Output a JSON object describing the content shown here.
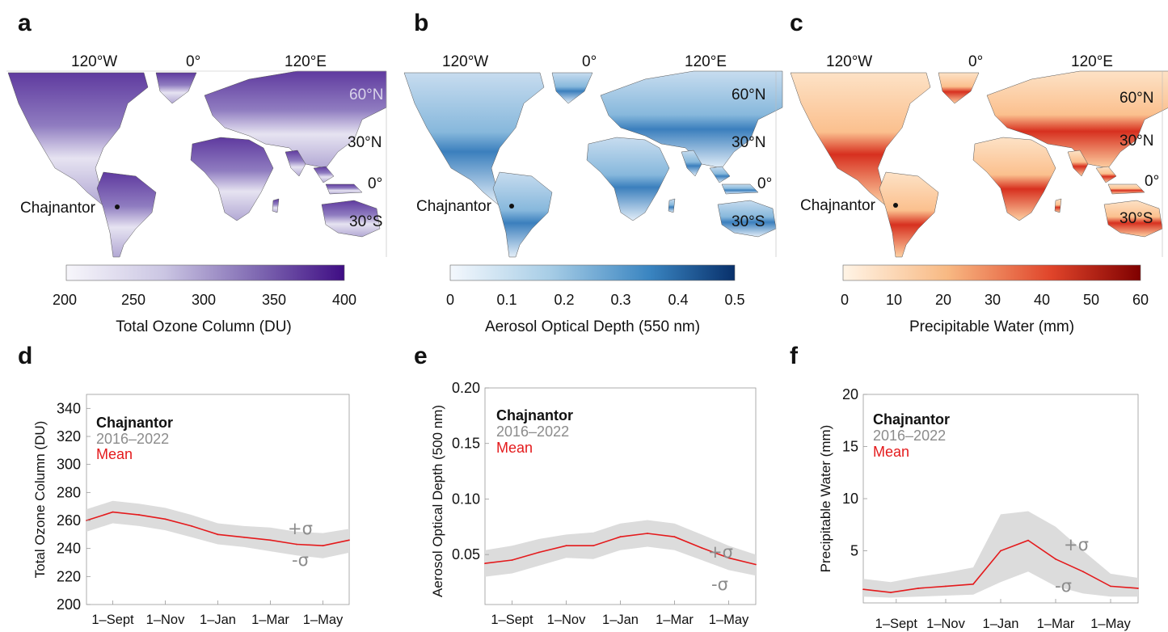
{
  "panel_letters": [
    "a",
    "b",
    "c",
    "d",
    "e",
    "f"
  ],
  "maps": [
    {
      "top_labels": [
        "120°W",
        "0°",
        "120°E"
      ],
      "lat_labels": [
        "60°N",
        "30°N",
        "0°",
        "30°S"
      ],
      "site_label": "Chajnantor",
      "colorbar_ticks": [
        "200",
        "250",
        "300",
        "350",
        "400"
      ],
      "colorbar_label": "Total Ozone Column (DU)",
      "colors": {
        "low": "#f7f6fb",
        "high": "#3f0d84"
      }
    },
    {
      "top_labels": [
        "120°W",
        "0°",
        "120°E"
      ],
      "lat_labels": [
        "60°N",
        "30°N",
        "0°",
        "30°S"
      ],
      "site_label": "Chajnantor",
      "colorbar_ticks": [
        "0",
        "0.1",
        "0.2",
        "0.3",
        "0.4",
        "0.5"
      ],
      "colorbar_label": "Aerosol Optical Depth (550 nm)",
      "colors": {
        "low": "#f4f8fd",
        "high": "#08306b"
      }
    },
    {
      "top_labels": [
        "120°W",
        "0°",
        "120°E"
      ],
      "lat_labels": [
        "60°N",
        "30°N",
        "0°",
        "30°S"
      ],
      "site_label": "Chajnantor",
      "colorbar_ticks": [
        "0",
        "10",
        "20",
        "30",
        "40",
        "50",
        "60"
      ],
      "colorbar_label": "Precipitable Water (mm)",
      "colors": {
        "low": "#fff4e6",
        "high": "#7f0000"
      }
    }
  ],
  "legend": {
    "site": "Chajnantor",
    "years": "2016–2022",
    "mean": "Mean",
    "plus_sigma": "+σ",
    "minus_sigma": "-σ"
  },
  "chart_data": [
    {
      "type": "line",
      "panel": "d",
      "ylabel": "Total Ozone Column (DU)",
      "ylim": [
        200,
        350
      ],
      "yticks": [
        200,
        220,
        240,
        260,
        280,
        300,
        320,
        340
      ],
      "xticks": [
        "1–Sept",
        "1–Nov",
        "1–Jan",
        "1–Mar",
        "1–May"
      ],
      "x": [
        "1-Aug",
        "1-Sept",
        "1-Oct",
        "1-Nov",
        "1-Dec",
        "1-Jan",
        "1-Feb",
        "1-Mar",
        "1-Apr",
        "1-May",
        "end-May"
      ],
      "series": [
        {
          "name": "Mean",
          "values": [
            260,
            266,
            264,
            261,
            256,
            250,
            248,
            246,
            243,
            242,
            246
          ]
        },
        {
          "name": "+σ",
          "values": [
            268,
            274,
            272,
            269,
            264,
            258,
            256,
            255,
            252,
            251,
            254
          ]
        },
        {
          "name": "-σ",
          "values": [
            252,
            258,
            256,
            253,
            248,
            243,
            241,
            238,
            235,
            233,
            237
          ]
        }
      ],
      "colors": {
        "mean": "#e41a1c",
        "band": "#dcdcdc"
      }
    },
    {
      "type": "line",
      "panel": "e",
      "ylabel": "Aerosol Optical Depth (500 nm)",
      "ylim": [
        0.005,
        0.2
      ],
      "yticks": [
        0.05,
        0.1,
        0.15,
        0.2
      ],
      "ytick_labels": [
        "0.05",
        "0.10",
        "0.15",
        "0.20"
      ],
      "xticks": [
        "1–Sept",
        "1–Nov",
        "1–Jan",
        "1–Mar",
        "1–May"
      ],
      "x": [
        "1-Aug",
        "1-Sept",
        "1-Oct",
        "1-Nov",
        "1-Dec",
        "1-Jan",
        "1-Feb",
        "1-Mar",
        "1-Apr",
        "1-May",
        "end-May"
      ],
      "series": [
        {
          "name": "Mean",
          "values": [
            0.042,
            0.045,
            0.052,
            0.058,
            0.058,
            0.066,
            0.069,
            0.066,
            0.056,
            0.047,
            0.041
          ]
        },
        {
          "name": "+σ",
          "values": [
            0.054,
            0.058,
            0.064,
            0.068,
            0.07,
            0.078,
            0.081,
            0.078,
            0.068,
            0.058,
            0.05
          ]
        },
        {
          "name": "-σ",
          "values": [
            0.03,
            0.033,
            0.04,
            0.047,
            0.046,
            0.054,
            0.057,
            0.054,
            0.045,
            0.036,
            0.031
          ]
        }
      ],
      "colors": {
        "mean": "#e41a1c",
        "band": "#dcdcdc"
      }
    },
    {
      "type": "line",
      "panel": "f",
      "ylabel": "Precipitable Water (mm)",
      "ylim": [
        0,
        20
      ],
      "yticks": [
        5,
        10,
        15,
        20
      ],
      "xticks": [
        "1–Sept",
        "1–Nov",
        "1–Jan",
        "1–Mar",
        "1–May"
      ],
      "x": [
        "1-Aug",
        "1-Sept",
        "1-Oct",
        "1-Nov",
        "1-Dec",
        "1-Jan",
        "1-Feb",
        "1-Mar",
        "1-Apr",
        "1-May",
        "end-May"
      ],
      "series": [
        {
          "name": "Mean",
          "values": [
            1.3,
            1.0,
            1.4,
            1.6,
            1.8,
            5.0,
            6.0,
            4.2,
            3.0,
            1.6,
            1.4
          ]
        },
        {
          "name": "+σ",
          "values": [
            2.3,
            2.0,
            2.5,
            2.9,
            3.4,
            8.5,
            8.8,
            7.3,
            5.0,
            2.8,
            2.4
          ]
        },
        {
          "name": "-σ",
          "values": [
            0.6,
            0.5,
            0.6,
            0.7,
            0.8,
            2.0,
            3.0,
            1.6,
            0.9,
            0.6,
            0.6
          ]
        }
      ],
      "colors": {
        "mean": "#e41a1c",
        "band": "#dcdcdc"
      }
    }
  ]
}
